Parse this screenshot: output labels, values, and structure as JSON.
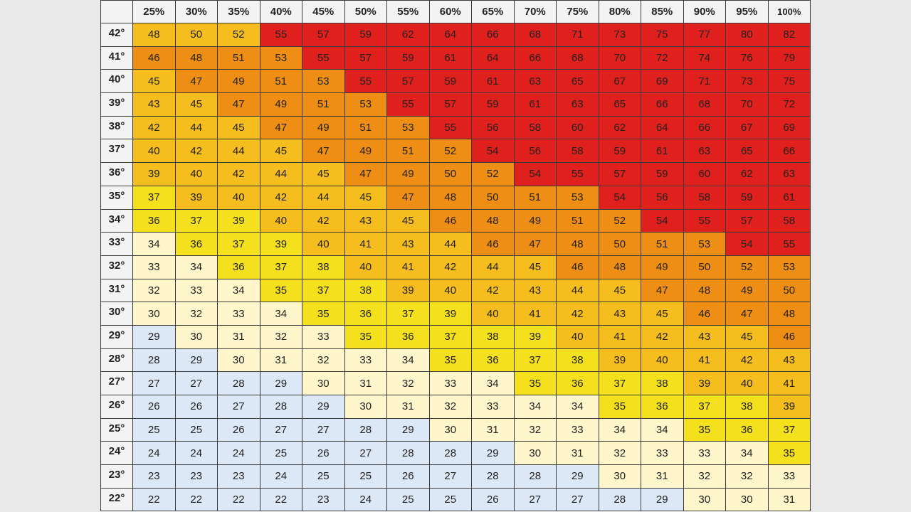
{
  "chart_data": {
    "type": "heatmap",
    "title": "",
    "xlabel": "",
    "ylabel": "",
    "columns": [
      "25%",
      "30%",
      "35%",
      "40%",
      "45%",
      "50%",
      "55%",
      "60%",
      "65%",
      "70%",
      "75%",
      "80%",
      "85%",
      "90%",
      "95%",
      "100%"
    ],
    "rows": [
      "42°",
      "41°",
      "40°",
      "39°",
      "38°",
      "37°",
      "36°",
      "35°",
      "34°",
      "33°",
      "32°",
      "31°",
      "30°",
      "29°",
      "28°",
      "27°",
      "26°",
      "25°",
      "24°",
      "23°",
      "22°"
    ],
    "values": [
      [
        48,
        50,
        52,
        55,
        57,
        59,
        62,
        64,
        66,
        68,
        71,
        73,
        75,
        77,
        80,
        82
      ],
      [
        46,
        48,
        51,
        53,
        55,
        57,
        59,
        61,
        64,
        66,
        68,
        70,
        72,
        74,
        76,
        79
      ],
      [
        45,
        47,
        49,
        51,
        53,
        55,
        57,
        59,
        61,
        63,
        65,
        67,
        69,
        71,
        73,
        75
      ],
      [
        43,
        45,
        47,
        49,
        51,
        53,
        55,
        57,
        59,
        61,
        63,
        65,
        66,
        68,
        70,
        72
      ],
      [
        42,
        44,
        45,
        47,
        49,
        51,
        53,
        55,
        56,
        58,
        60,
        62,
        64,
        66,
        67,
        69
      ],
      [
        40,
        42,
        44,
        45,
        47,
        49,
        51,
        52,
        54,
        56,
        58,
        59,
        61,
        63,
        65,
        66
      ],
      [
        39,
        40,
        42,
        44,
        45,
        47,
        49,
        50,
        52,
        54,
        55,
        57,
        59,
        60,
        62,
        63
      ],
      [
        37,
        39,
        40,
        42,
        44,
        45,
        47,
        48,
        50,
        51,
        53,
        54,
        56,
        58,
        59,
        61
      ],
      [
        36,
        37,
        39,
        40,
        42,
        43,
        45,
        46,
        48,
        49,
        51,
        52,
        54,
        55,
        57,
        58
      ],
      [
        34,
        36,
        37,
        39,
        40,
        41,
        43,
        44,
        46,
        47,
        48,
        50,
        51,
        53,
        54,
        55
      ],
      [
        33,
        34,
        36,
        37,
        38,
        40,
        41,
        42,
        44,
        45,
        46,
        48,
        49,
        50,
        52,
        53
      ],
      [
        32,
        33,
        34,
        35,
        37,
        38,
        39,
        40,
        42,
        43,
        44,
        45,
        47,
        48,
        49,
        50
      ],
      [
        30,
        32,
        33,
        34,
        35,
        36,
        37,
        39,
        40,
        41,
        42,
        43,
        45,
        46,
        47,
        48
      ],
      [
        29,
        30,
        31,
        32,
        33,
        35,
        36,
        37,
        38,
        39,
        40,
        41,
        42,
        43,
        45,
        46
      ],
      [
        28,
        29,
        30,
        31,
        32,
        33,
        34,
        35,
        36,
        37,
        38,
        39,
        40,
        41,
        42,
        43
      ],
      [
        27,
        27,
        28,
        29,
        30,
        31,
        32,
        33,
        34,
        35,
        36,
        37,
        38,
        39,
        40,
        41
      ],
      [
        26,
        26,
        27,
        28,
        29,
        30,
        31,
        32,
        33,
        34,
        34,
        35,
        36,
        37,
        38,
        39
      ],
      [
        25,
        25,
        26,
        27,
        27,
        28,
        29,
        30,
        31,
        32,
        33,
        34,
        34,
        35,
        36,
        37
      ],
      [
        24,
        24,
        24,
        25,
        26,
        27,
        28,
        28,
        29,
        30,
        31,
        32,
        33,
        33,
        34,
        35
      ],
      [
        23,
        23,
        23,
        24,
        25,
        25,
        26,
        27,
        28,
        28,
        29,
        30,
        31,
        32,
        32,
        33
      ],
      [
        22,
        22,
        22,
        22,
        23,
        24,
        25,
        25,
        26,
        27,
        27,
        28,
        29,
        30,
        30,
        31
      ]
    ],
    "bands": [
      [
        3,
        3,
        3,
        5,
        5,
        5,
        5,
        5,
        5,
        5,
        5,
        5,
        5,
        5,
        5,
        5
      ],
      [
        4,
        4,
        4,
        4,
        5,
        5,
        5,
        5,
        5,
        5,
        5,
        5,
        5,
        5,
        5,
        5
      ],
      [
        3,
        4,
        4,
        4,
        4,
        5,
        5,
        5,
        5,
        5,
        5,
        5,
        5,
        5,
        5,
        5
      ],
      [
        3,
        3,
        4,
        4,
        4,
        4,
        5,
        5,
        5,
        5,
        5,
        5,
        5,
        5,
        5,
        5
      ],
      [
        3,
        3,
        3,
        4,
        4,
        4,
        4,
        5,
        5,
        5,
        5,
        5,
        5,
        5,
        5,
        5
      ],
      [
        3,
        3,
        3,
        3,
        4,
        4,
        4,
        4,
        5,
        5,
        5,
        5,
        5,
        5,
        5,
        5
      ],
      [
        3,
        3,
        3,
        3,
        3,
        4,
        4,
        4,
        4,
        5,
        5,
        5,
        5,
        5,
        5,
        5
      ],
      [
        2,
        3,
        3,
        3,
        3,
        3,
        4,
        4,
        4,
        4,
        4,
        5,
        5,
        5,
        5,
        5
      ],
      [
        2,
        2,
        2,
        3,
        3,
        3,
        3,
        4,
        4,
        4,
        4,
        4,
        5,
        5,
        5,
        5
      ],
      [
        1,
        2,
        2,
        2,
        3,
        3,
        3,
        3,
        4,
        4,
        4,
        4,
        4,
        4,
        5,
        5
      ],
      [
        1,
        1,
        2,
        2,
        2,
        3,
        3,
        3,
        3,
        3,
        4,
        4,
        4,
        4,
        4,
        4
      ],
      [
        1,
        1,
        1,
        2,
        2,
        2,
        3,
        3,
        3,
        3,
        3,
        3,
        4,
        4,
        4,
        4
      ],
      [
        1,
        1,
        1,
        1,
        2,
        2,
        2,
        2,
        3,
        3,
        3,
        3,
        3,
        4,
        4,
        4
      ],
      [
        0,
        1,
        1,
        1,
        1,
        2,
        2,
        2,
        2,
        2,
        3,
        3,
        3,
        3,
        3,
        4
      ],
      [
        0,
        0,
        1,
        1,
        1,
        1,
        1,
        2,
        2,
        2,
        2,
        3,
        3,
        3,
        3,
        3
      ],
      [
        0,
        0,
        0,
        0,
        1,
        1,
        1,
        1,
        1,
        2,
        2,
        2,
        2,
        3,
        3,
        3
      ],
      [
        0,
        0,
        0,
        0,
        0,
        1,
        1,
        1,
        1,
        1,
        1,
        2,
        2,
        2,
        2,
        3
      ],
      [
        0,
        0,
        0,
        0,
        0,
        0,
        0,
        1,
        1,
        1,
        1,
        1,
        1,
        2,
        2,
        2
      ],
      [
        0,
        0,
        0,
        0,
        0,
        0,
        0,
        0,
        0,
        1,
        1,
        1,
        1,
        1,
        1,
        2
      ],
      [
        0,
        0,
        0,
        0,
        0,
        0,
        0,
        0,
        0,
        0,
        0,
        1,
        1,
        1,
        1,
        1
      ],
      [
        0,
        0,
        0,
        0,
        0,
        0,
        0,
        0,
        0,
        0,
        0,
        0,
        0,
        1,
        1,
        1
      ]
    ],
    "band_colors": [
      "#dde8f6",
      "#fff6cc",
      "#f4e01c",
      "#f5bd1e",
      "#ef8e14",
      "#e0201c"
    ],
    "grid": true,
    "legend": "none"
  }
}
